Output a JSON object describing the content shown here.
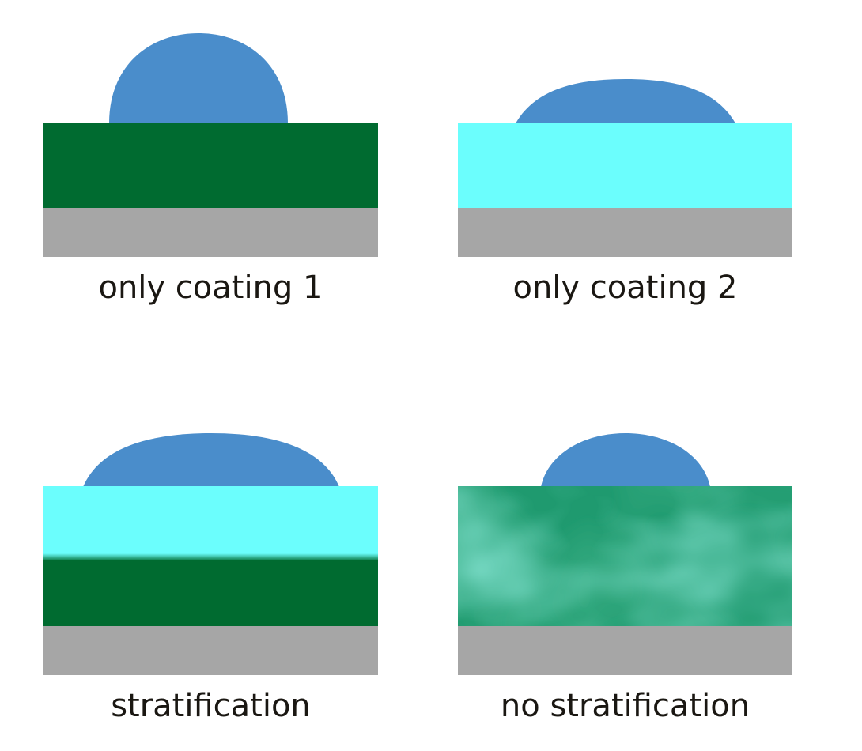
{
  "colors": {
    "droplet": "#4a8dcb",
    "coating_1": "#006b30",
    "coating_2": "#6bfefd",
    "substrate": "#a6a6a6",
    "mixed_base": "#1f9a6f",
    "mixed_light": "#33b894",
    "mixed_dark": "#11804e",
    "text": "#1a1712"
  },
  "panels": [
    {
      "id": "coating-1-only",
      "label": "only coating 1",
      "droplet": "high contact angle",
      "layers": [
        "coating_1",
        "substrate"
      ]
    },
    {
      "id": "coating-2-only",
      "label": "only coating 2",
      "droplet": "low contact angle",
      "layers": [
        "coating_2",
        "substrate"
      ]
    },
    {
      "id": "stratified",
      "label": "stratification",
      "droplet": "low contact angle",
      "layers": [
        "coating_2",
        "coating_1",
        "substrate"
      ]
    },
    {
      "id": "mixed",
      "label": "no stratification",
      "droplet": "medium contact angle",
      "layers": [
        "mixed",
        "substrate"
      ]
    }
  ]
}
